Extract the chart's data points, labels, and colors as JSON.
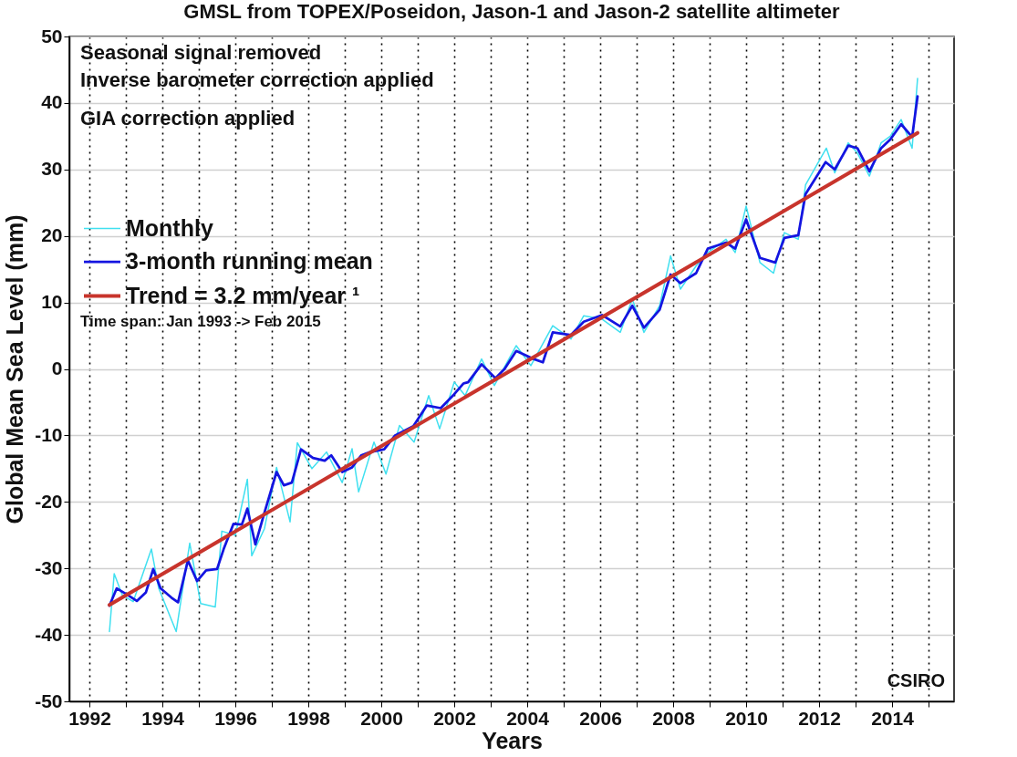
{
  "chart_data": {
    "type": "line",
    "title": "GMSL from TOPEX/Poseidon, Jason-1 and Jason-2 satellite altimeter",
    "xlabel": "Years",
    "ylabel": "Global Mean Sea Level (mm)",
    "xlim": [
      1991.45,
      2015.7
    ],
    "ylim": [
      -50,
      50
    ],
    "xticks": [
      1992,
      {
        "value": 1993,
        "label": null
      },
      1994,
      {
        "value": 1995,
        "label": null
      },
      1996,
      {
        "value": 1997,
        "label": null
      },
      1998,
      {
        "value": 1999,
        "label": null
      },
      2000,
      {
        "value": 2001,
        "label": null
      },
      2002,
      {
        "value": 2003,
        "label": null
      },
      2004,
      {
        "value": 2005,
        "label": null
      },
      2006,
      {
        "value": 2007,
        "label": null
      },
      2008,
      {
        "value": 2009,
        "label": null
      },
      2010,
      {
        "value": 2011,
        "label": null
      },
      2012,
      {
        "value": 2013,
        "label": null
      },
      2014,
      {
        "value": 2015,
        "label": null
      }
    ],
    "yticks": [
      -50,
      -40,
      -30,
      -20,
      -10,
      0,
      10,
      20,
      30,
      40,
      50
    ],
    "grid": true,
    "legend": "left",
    "annotations": [
      "Seasonal signal removed",
      "Inverse barometer correction applied",
      "GIA correction applied",
      "Time span: Jan 1993 -> Feb 2015",
      "CSIRO"
    ],
    "series": [
      {
        "name": "Monthly",
        "color": "#40e0f0",
        "x": [
          1992.55,
          1992.68,
          1992.9,
          1993.2,
          1993.7,
          1993.9,
          1994.38,
          1994.75,
          1995.05,
          1995.45,
          1995.63,
          1996.0,
          1996.33,
          1996.45,
          1996.8,
          1997.13,
          1997.5,
          1997.7,
          1998.1,
          1998.5,
          1998.93,
          1999.2,
          1999.38,
          1999.8,
          2000.13,
          2000.5,
          2000.9,
          2001.3,
          2001.6,
          2002.0,
          2002.3,
          2002.75,
          2003.1,
          2003.7,
          2004.1,
          2004.7,
          2005.2,
          2005.55,
          2006.05,
          2006.55,
          2006.88,
          2007.2,
          2007.63,
          2007.93,
          2008.2,
          2008.63,
          2008.95,
          2009.45,
          2009.7,
          2010.0,
          2010.38,
          2010.75,
          2011.05,
          2011.43,
          2011.63,
          2012.2,
          2012.43,
          2012.8,
          2013.05,
          2013.38,
          2013.7,
          2013.95,
          2014.25,
          2014.55,
          2014.7
        ],
        "values": [
          -39.5,
          -30.8,
          -34,
          -35,
          -27.1,
          -33,
          -39.5,
          -26.2,
          -35.3,
          -35.8,
          -24.4,
          -25,
          -16.6,
          -28.1,
          -24,
          -14.8,
          -23,
          -11.1,
          -15,
          -12.5,
          -17.1,
          -12,
          -18.5,
          -11,
          -15.8,
          -8.5,
          -11,
          -4,
          -9,
          -2,
          -4,
          1.5,
          -2.5,
          3.5,
          0.5,
          6.5,
          4.5,
          8,
          7.5,
          5.5,
          10.5,
          5.5,
          9.5,
          17,
          12,
          15.5,
          17.5,
          19.5,
          17.5,
          24.5,
          16,
          14.4,
          20.5,
          19.5,
          27.7,
          33.2,
          29.5,
          34,
          32.5,
          29,
          34,
          35,
          37.5,
          33.2,
          43.7
        ]
      },
      {
        "name": "3-month running mean",
        "color": "#1414e0",
        "x": [
          1992.55,
          1992.75,
          1993.05,
          1993.3,
          1993.55,
          1993.75,
          1993.95,
          1994.25,
          1994.43,
          1994.7,
          1994.95,
          1995.2,
          1995.5,
          1995.68,
          1995.95,
          1996.18,
          1996.33,
          1996.55,
          1996.8,
          1997.13,
          1997.33,
          1997.55,
          1997.8,
          1998.13,
          1998.45,
          1998.63,
          1998.93,
          1999.2,
          1999.45,
          1999.7,
          2000.08,
          2000.38,
          2000.88,
          2001.25,
          2001.63,
          2002.0,
          2002.25,
          2002.38,
          2002.75,
          2003.13,
          2003.38,
          2003.7,
          2004.13,
          2004.43,
          2004.7,
          2005.2,
          2005.55,
          2006.05,
          2006.55,
          2006.88,
          2007.2,
          2007.63,
          2007.93,
          2008.2,
          2008.63,
          2008.95,
          2009.45,
          2009.7,
          2010.0,
          2010.38,
          2010.8,
          2011.05,
          2011.43,
          2011.63,
          2012.18,
          2012.43,
          2012.8,
          2013.05,
          2013.38,
          2013.7,
          2013.95,
          2014.25,
          2014.55,
          2014.7
        ],
        "values": [
          -35.6,
          -33.0,
          -34.0,
          -34.9,
          -33.6,
          -30.1,
          -33.0,
          -34.4,
          -35.1,
          -28.8,
          -31.9,
          -30.3,
          -30.1,
          -27.1,
          -23.3,
          -23.4,
          -21.0,
          -26.4,
          -21.6,
          -15.5,
          -17.5,
          -17.1,
          -12.1,
          -13.4,
          -13.8,
          -13.0,
          -15.5,
          -14.8,
          -13.0,
          -12.5,
          -12.1,
          -10.0,
          -8.6,
          -5.5,
          -5.9,
          -3.8,
          -2.2,
          -2.0,
          0.7,
          -1.4,
          0.0,
          2.7,
          1.6,
          1.0,
          5.5,
          5.1,
          7.1,
          8.1,
          6.4,
          9.5,
          6.2,
          8.9,
          14.2,
          12.9,
          14.4,
          18.1,
          19.0,
          18.1,
          22.5,
          16.7,
          16.0,
          19.7,
          20.1,
          26.3,
          31.1,
          30.0,
          33.6,
          33.2,
          29.7,
          33.2,
          34.5,
          36.8,
          34.9,
          41.0
        ]
      },
      {
        "name": "Trend = 3.2 mm/year ¹",
        "color": "#c8342c",
        "x": [
          1992.55,
          2014.7
        ],
        "values": [
          -35.5,
          35.5
        ]
      }
    ]
  }
}
